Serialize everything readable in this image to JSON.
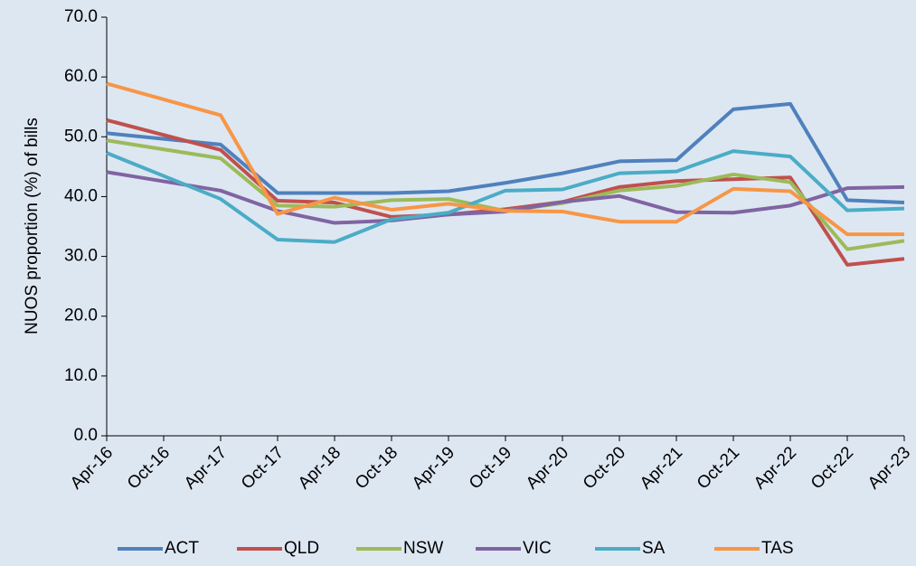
{
  "chart_data": {
    "type": "line",
    "y_label": "NUOS proportion (%) of bills",
    "categories": [
      "Apr-16",
      "Oct-16",
      "Apr-17",
      "Oct-17",
      "Apr-18",
      "Oct-18",
      "Apr-19",
      "Oct-19",
      "Apr-20",
      "Oct-20",
      "Apr-21",
      "Oct-21",
      "Apr-22",
      "Oct-22",
      "Apr-23"
    ],
    "span_gaps": true,
    "ylim": [
      0,
      70
    ],
    "yticks": [
      {
        "value": 0,
        "label": "0.0"
      },
      {
        "value": 10,
        "label": "10.0"
      },
      {
        "value": 20,
        "label": "20.0"
      },
      {
        "value": 30,
        "label": "30.0"
      },
      {
        "value": 40,
        "label": "40.0"
      },
      {
        "value": 50,
        "label": "50.0"
      },
      {
        "value": 60,
        "label": "60.0"
      },
      {
        "value": 70,
        "label": "70.0"
      }
    ],
    "legend": "bottom",
    "series": [
      {
        "name": "ACT",
        "color": "#4f81bd",
        "values": [
          50.6,
          null,
          48.7,
          40.6,
          40.6,
          40.6,
          40.9,
          42.3,
          43.9,
          45.9,
          46.1,
          54.6,
          55.5,
          39.4,
          39.0
        ]
      },
      {
        "name": "QLD",
        "color": "#c0504d",
        "values": [
          52.8,
          null,
          47.8,
          39.3,
          39.0,
          36.6,
          37.0,
          37.9,
          39.1,
          41.6,
          42.6,
          42.9,
          43.2,
          28.6,
          29.6
        ]
      },
      {
        "name": "NSW",
        "color": "#9bbb59",
        "values": [
          49.4,
          null,
          46.4,
          38.5,
          38.3,
          39.4,
          39.6,
          37.6,
          38.9,
          41.0,
          41.8,
          43.7,
          42.4,
          31.2,
          32.6
        ]
      },
      {
        "name": "VIC",
        "color": "#8064a2",
        "values": [
          44.1,
          null,
          41.0,
          37.6,
          35.6,
          36.0,
          37.0,
          37.5,
          39.1,
          40.1,
          37.4,
          37.3,
          38.5,
          41.4,
          41.6
        ]
      },
      {
        "name": "SA",
        "color": "#4bacc6",
        "values": [
          47.3,
          null,
          39.6,
          32.8,
          32.4,
          36.2,
          37.3,
          41.0,
          41.2,
          43.9,
          44.2,
          47.6,
          46.7,
          37.7,
          38.0
        ]
      },
      {
        "name": "TAS",
        "color": "#f79646",
        "values": [
          58.9,
          null,
          53.6,
          37.1,
          39.8,
          37.8,
          38.8,
          37.6,
          37.5,
          35.8,
          35.8,
          41.3,
          40.9,
          33.7,
          33.7
        ]
      }
    ]
  }
}
